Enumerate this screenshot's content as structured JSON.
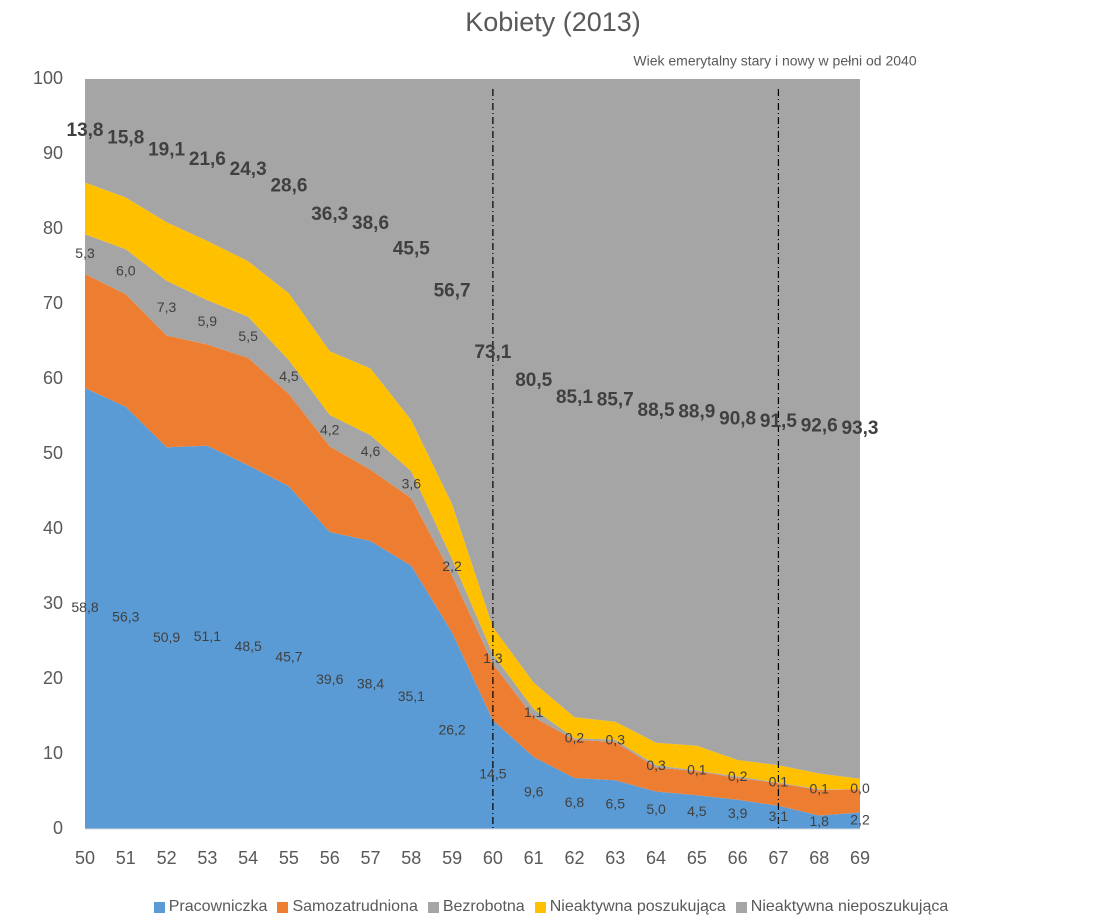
{
  "chart_data": {
    "type": "stacked_area",
    "title": "Kobiety (2013)",
    "annotation": "Wiek emerytalny stary i nowy  w pełni od 2040",
    "x": [
      50,
      51,
      52,
      53,
      54,
      55,
      56,
      57,
      58,
      59,
      60,
      61,
      62,
      63,
      64,
      65,
      66,
      67,
      68,
      69
    ],
    "xlim": [
      50,
      69
    ],
    "xticks": [
      50,
      51,
      52,
      53,
      54,
      55,
      56,
      57,
      58,
      59,
      60,
      61,
      62,
      63,
      64,
      65,
      66,
      67,
      68,
      69
    ],
    "ylim": [
      0,
      100
    ],
    "yticks": [
      0,
      10,
      20,
      30,
      40,
      50,
      60,
      70,
      80,
      90,
      100
    ],
    "grid": false,
    "vlines": [
      60,
      67
    ],
    "legend": "bottom",
    "series": [
      {
        "name": "Pracowniczka",
        "color": "#5b9bd5",
        "data_labels": true,
        "bold_labels": false,
        "values": [
          58.8,
          56.3,
          50.9,
          51.1,
          48.5,
          45.7,
          39.6,
          38.4,
          35.1,
          26.2,
          14.5,
          9.6,
          6.8,
          6.5,
          5.0,
          4.5,
          3.9,
          3.1,
          1.8,
          2.2
        ],
        "value_labels": [
          "58,8",
          "56,3",
          "50,9",
          "51,1",
          "48,5",
          "45,7",
          "39,6",
          "38,4",
          "35,1",
          "26,2",
          "14,5",
          "9,6",
          "6,8",
          "6,5",
          "5,0",
          "4,5",
          "3,9",
          "3,1",
          "1,8",
          "2,2"
        ]
      },
      {
        "name": "Samozatrudniona",
        "color": "#ed7d31",
        "data_labels": false,
        "bold_labels": false,
        "values": [
          15.2,
          15.0,
          14.9,
          13.5,
          14.3,
          12.3,
          11.4,
          9.5,
          9.0,
          7.6,
          7.5,
          5.3,
          5.1,
          5.1,
          3.2,
          3.2,
          2.9,
          3.0,
          3.4,
          3.1
        ]
      },
      {
        "name": "Bezrobotna",
        "color": "#a5a5a5",
        "data_labels": true,
        "bold_labels": false,
        "values": [
          5.3,
          6.0,
          7.3,
          5.9,
          5.5,
          4.5,
          4.2,
          4.6,
          3.6,
          2.2,
          1.3,
          1.1,
          0.2,
          0.3,
          0.3,
          0.1,
          0.2,
          0.1,
          0.1,
          0.0
        ],
        "value_labels": [
          "5,3",
          "6,0",
          "7,3",
          "5,9",
          "5,5",
          "4,5",
          "4,2",
          "4,6",
          "3,6",
          "2,2",
          "1,3",
          "1,1",
          "0,2",
          "0,3",
          "0,3",
          "0,1",
          "0,2",
          "0,1",
          "0,1",
          "0,0"
        ]
      },
      {
        "name": "Nieaktywna poszukująca",
        "color": "#ffc000",
        "data_labels": false,
        "bold_labels": false,
        "values": [
          6.9,
          6.9,
          7.8,
          7.9,
          7.4,
          8.9,
          8.5,
          8.9,
          6.8,
          7.3,
          3.6,
          3.5,
          2.8,
          2.4,
          3.0,
          3.3,
          2.2,
          2.3,
          2.1,
          1.4
        ]
      },
      {
        "name": "Nieaktywna nieposzukująca",
        "color": "#a5a5a5",
        "data_labels": true,
        "bold_labels": true,
        "values": [
          13.8,
          15.8,
          19.1,
          21.6,
          24.3,
          28.6,
          36.3,
          38.6,
          45.5,
          56.7,
          73.1,
          80.5,
          85.1,
          85.7,
          88.5,
          88.9,
          90.8,
          91.5,
          92.6,
          93.3
        ],
        "value_labels": [
          "13,8",
          "15,8",
          "19,1",
          "21,6",
          "24,3",
          "28,6",
          "36,3",
          "38,6",
          "45,5",
          "56,7",
          "73,1",
          "80,5",
          "85,1",
          "85,7",
          "88,5",
          "88,9",
          "90,8",
          "91,5",
          "92,6",
          "93,3"
        ]
      }
    ]
  }
}
